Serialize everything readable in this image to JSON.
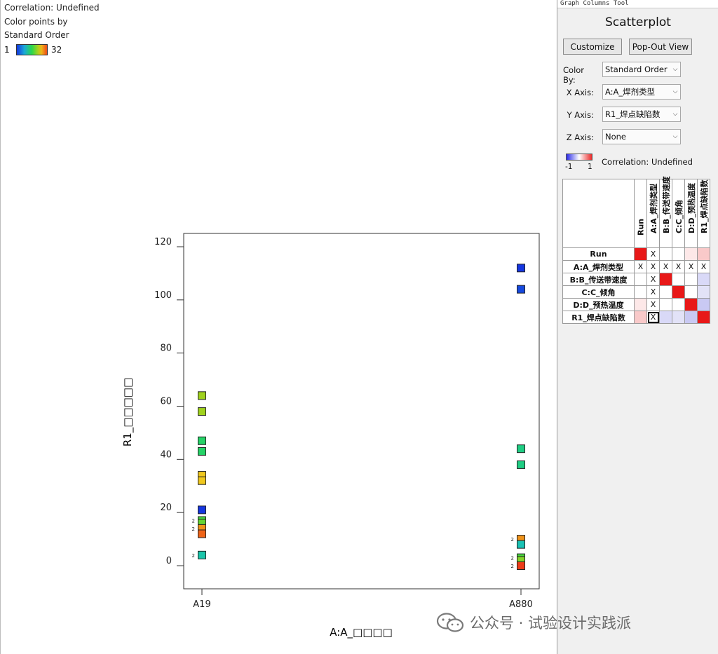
{
  "legend": {
    "line1": "Correlation: Undefined",
    "line2": "Color points by",
    "line3": "Standard Order",
    "min": "1",
    "max": "32"
  },
  "chart_data": {
    "type": "scatter",
    "xlabel": "A:A_□□□□",
    "ylabel": "R1_□□□□□",
    "categories": [
      "A19",
      "A880"
    ],
    "ylim": [
      -8,
      126
    ],
    "yticks": [
      0,
      20,
      40,
      60,
      80,
      100,
      120
    ],
    "points": [
      {
        "x": "A19",
        "y": 64,
        "order": 20
      },
      {
        "x": "A19",
        "y": 58,
        "order": 20
      },
      {
        "x": "A19",
        "y": 47,
        "order": 15
      },
      {
        "x": "A19",
        "y": 43,
        "order": 15
      },
      {
        "x": "A19",
        "y": 34,
        "order": 25
      },
      {
        "x": "A19",
        "y": 32,
        "order": 25
      },
      {
        "x": "A19",
        "y": 21,
        "order": 1
      },
      {
        "x": "A19",
        "y": 17,
        "order": 17,
        "label": "2"
      },
      {
        "x": "A19",
        "y": 16,
        "order": 18
      },
      {
        "x": "A19",
        "y": 14,
        "order": 27,
        "label": "2"
      },
      {
        "x": "A19",
        "y": 12,
        "order": 29
      },
      {
        "x": "A19",
        "y": 4,
        "order": 12,
        "label": "2"
      },
      {
        "x": "A880",
        "y": 112,
        "order": 1
      },
      {
        "x": "A880",
        "y": 104,
        "order": 2
      },
      {
        "x": "A880",
        "y": 44,
        "order": 14
      },
      {
        "x": "A880",
        "y": 38,
        "order": 14
      },
      {
        "x": "A880",
        "y": 10,
        "order": 27,
        "label": "2"
      },
      {
        "x": "A880",
        "y": 8,
        "order": 11
      },
      {
        "x": "A880",
        "y": 3,
        "order": 17,
        "label": "2"
      },
      {
        "x": "A880",
        "y": 2,
        "order": 19
      },
      {
        "x": "A880",
        "y": 0,
        "order": 31,
        "label": "2"
      }
    ]
  },
  "panel": {
    "window_title": "Graph Columns Tool",
    "heading": "Scatterplot",
    "customize": "Customize",
    "popout": "Pop-Out View",
    "color_by_label": "Color By:",
    "color_by_value": "Standard Order",
    "x_axis_label": "X Axis:",
    "x_axis_value": "A:A_焊剂类型",
    "y_axis_label": "Y Axis:",
    "y_axis_value": "R1_焊点缺陷数",
    "z_axis_label": "Z Axis:",
    "z_axis_value": "None",
    "corr_min": "-1",
    "corr_max": "1",
    "corr_text": "Correlation: Undefined"
  },
  "matrix": {
    "columns": [
      "Run",
      "A:A_焊剂类型",
      "B:B_传送带速度",
      "C:C_倾角",
      "D:D_预热温度",
      "R1_焊点缺陷数"
    ],
    "rows": [
      {
        "label": "Run",
        "cells": [
          "#e81818",
          "X",
          "",
          "",
          "#fde8e8",
          "#f9c9c9"
        ]
      },
      {
        "label": "A:A_焊剂类型",
        "cells": [
          "X",
          "X",
          "X",
          "X",
          "X",
          "X"
        ]
      },
      {
        "label": "B:B_传送带速度",
        "cells": [
          "",
          "X",
          "#e81818",
          "",
          "",
          "#d9d9f7"
        ]
      },
      {
        "label": "C:C_倾角",
        "cells": [
          "",
          "X",
          "",
          "#e81818",
          "",
          "#e2e2f7"
        ]
      },
      {
        "label": "D:D_预热温度",
        "cells": [
          "#fde8e8",
          "X",
          "",
          "",
          "#e81818",
          "#c9c9f3"
        ]
      },
      {
        "label": "R1_焊点缺陷数",
        "cells": [
          "#f9c9c9",
          "X",
          "#d9d9f7",
          "#e2e2f7",
          "#c9c9f3",
          "#e81818"
        ]
      }
    ]
  },
  "watermark": {
    "text": "公众号 · 试验设计实践派"
  }
}
